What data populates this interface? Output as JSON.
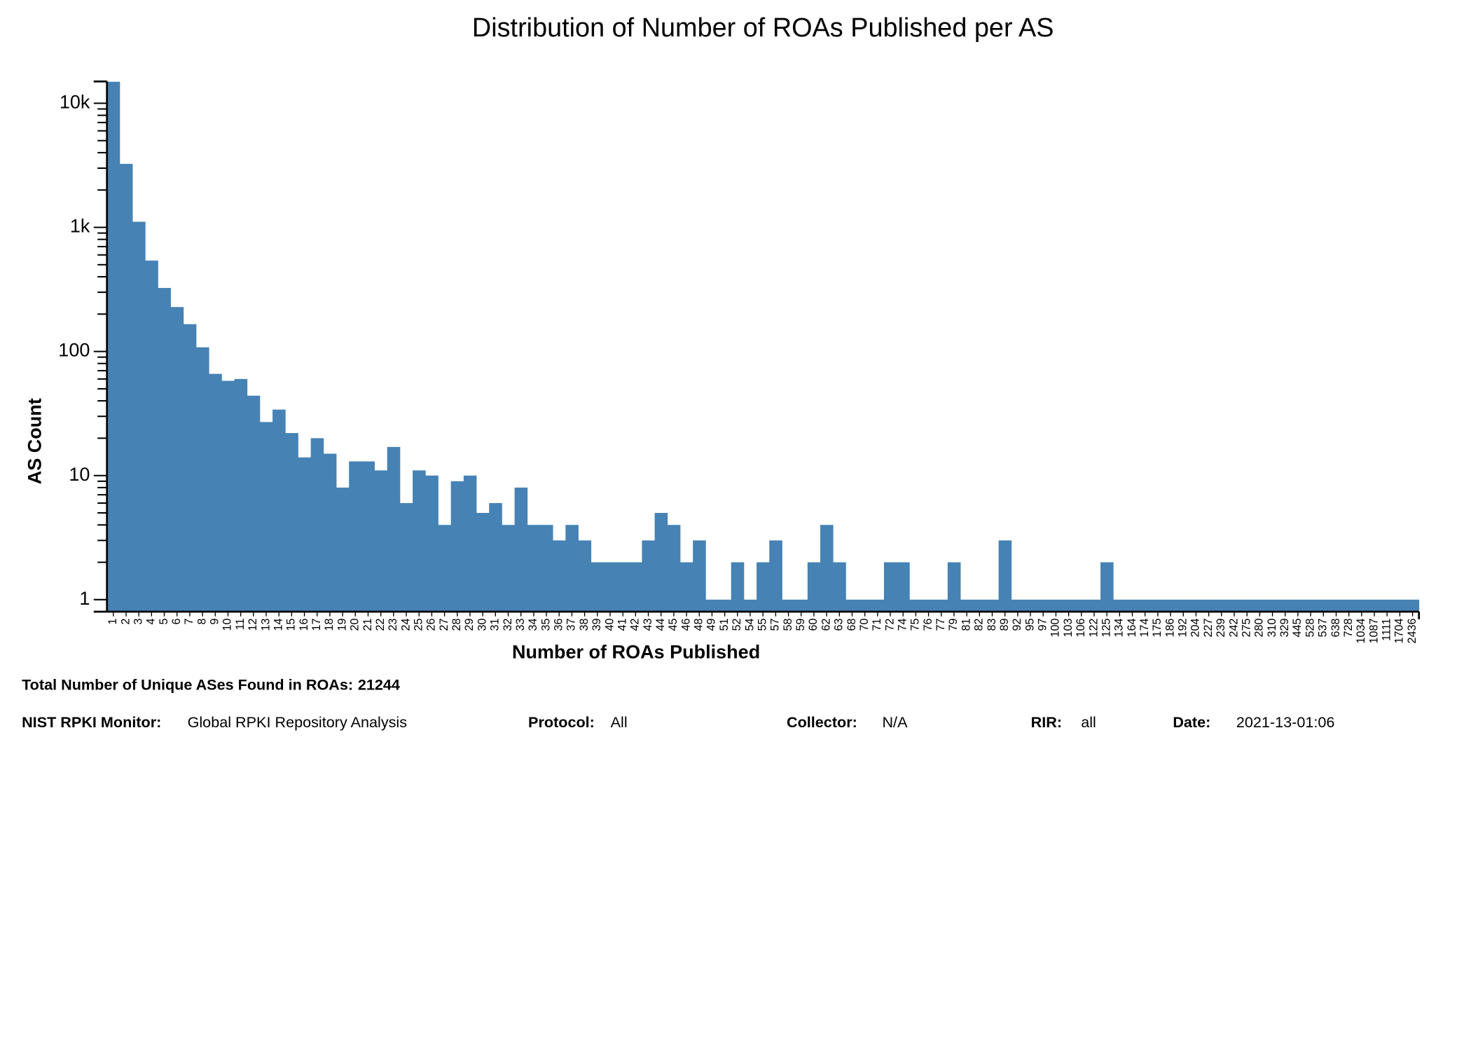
{
  "chart_data": {
    "type": "bar",
    "title": "Distribution of Number of ROAs Published per AS",
    "x_label": "Number of ROAs Published",
    "y_label": "AS Count",
    "color": "#4682b4",
    "log_scale": true,
    "categories": [
      "1",
      "2",
      "3",
      "4",
      "5",
      "6",
      "7",
      "8",
      "9",
      "10",
      "11",
      "12",
      "13",
      "14",
      "15",
      "16",
      "17",
      "18",
      "19",
      "20",
      "21",
      "22",
      "23",
      "24",
      "25",
      "26",
      "27",
      "28",
      "29",
      "30",
      "31",
      "32",
      "33",
      "34",
      "35",
      "36",
      "37",
      "38",
      "39",
      "40",
      "41",
      "42",
      "43",
      "44",
      "45",
      "46",
      "48",
      "49",
      "51",
      "52",
      "54",
      "55",
      "57",
      "58",
      "59",
      "60",
      "62",
      "63",
      "68",
      "70",
      "71",
      "72",
      "74",
      "75",
      "76",
      "77",
      "79",
      "81",
      "82",
      "83",
      "89",
      "92",
      "95",
      "97",
      "100",
      "103",
      "106",
      "122",
      "125",
      "134",
      "164",
      "174",
      "175",
      "186",
      "192",
      "204",
      "227",
      "239",
      "242",
      "275",
      "280",
      "310",
      "329",
      "445",
      "528",
      "537",
      "638",
      "728",
      "1034",
      "1087",
      "1111",
      "1704",
      "2436"
    ],
    "values": [
      14909,
      3250,
      1110,
      540,
      325,
      228,
      166,
      108,
      66,
      58,
      60,
      44,
      27,
      34,
      22,
      14,
      20,
      15,
      8,
      13,
      13,
      11,
      17,
      6,
      11,
      10,
      4,
      9,
      10,
      5,
      6,
      4,
      8,
      4,
      4,
      3,
      4,
      3,
      2,
      2,
      2,
      2,
      3,
      5,
      4,
      2,
      3,
      1,
      1,
      2,
      1,
      2,
      3,
      1,
      1,
      2,
      4,
      2,
      1,
      1,
      1,
      2,
      2,
      1,
      1,
      1,
      2,
      1,
      1,
      1,
      3,
      1,
      1,
      1,
      1,
      1,
      1,
      1,
      2,
      1,
      1,
      1,
      1,
      1,
      1,
      1,
      1,
      1,
      1,
      1,
      1,
      1,
      1,
      1,
      1,
      1,
      1,
      1,
      1,
      1,
      1,
      1,
      1
    ],
    "ylim": [
      0.8,
      15000
    ],
    "yticks": [
      1,
      10,
      100,
      {
        "value": 1000,
        "label": "1k"
      },
      {
        "value": 10000,
        "label": "10k"
      }
    ],
    "yticks_minor": [
      2,
      3,
      4,
      5,
      6,
      7,
      8,
      9,
      20,
      30,
      40,
      50,
      60,
      70,
      80,
      90,
      200,
      300,
      400,
      500,
      600,
      700,
      800,
      900,
      2000,
      3000,
      4000,
      5000,
      6000,
      7000,
      8000,
      9000
    ]
  },
  "footer": {
    "total_label": "Total Number of Unique ASes Found in ROAs:",
    "total": 21244,
    "fields": [
      {
        "label": "NIST RPKI Monitor:",
        "value": "Global RPKI Repository Analysis"
      },
      {
        "label": "Protocol:",
        "value": "All"
      },
      {
        "label": "Collector:",
        "value": "N/A"
      },
      {
        "label": "RIR:",
        "value": "all"
      },
      {
        "label": "Date:",
        "value": "2021-13-01:06"
      }
    ]
  }
}
